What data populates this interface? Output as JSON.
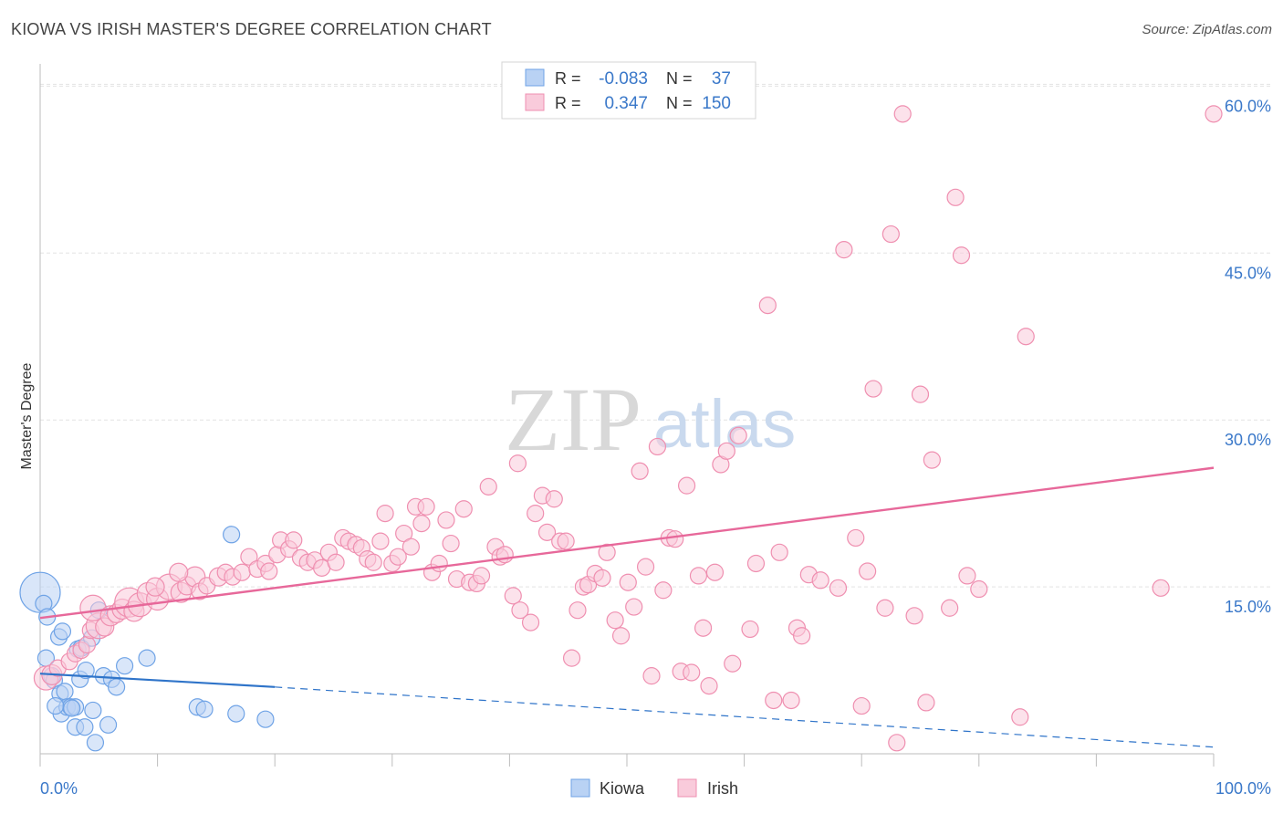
{
  "title": "KIOWA VS IRISH MASTER'S DEGREE CORRELATION CHART",
  "source": "Source: ZipAtlas.com",
  "watermark": {
    "zip": "ZIP",
    "atlas": "atlas"
  },
  "colors": {
    "kiowa": "#6fa3e6",
    "kiowa_fill": "#b9d2f4",
    "kiowa_line": "#2f74c9",
    "irish": "#ef8fb0",
    "irish_fill": "#f9cbdb",
    "irish_line": "#e7689a",
    "tick_label": "#3a78c9",
    "grid": "#e3e3e3"
  },
  "legend": {
    "rows": [
      {
        "r_label": "R =",
        "r_value": "-0.083",
        "n_label": "N =",
        "n_value": "37"
      },
      {
        "r_label": "R =",
        "r_value": "0.347",
        "n_label": "N =",
        "n_value": "150"
      }
    ]
  },
  "chart_data": {
    "type": "scatter",
    "title": "KIOWA VS IRISH MASTER'S DEGREE CORRELATION CHART",
    "xlabel": "",
    "ylabel": "Master's Degree",
    "xlim": [
      0,
      100
    ],
    "ylim": [
      0,
      62
    ],
    "x_tick_labels": [
      "0.0%",
      "100.0%"
    ],
    "y_ticks": [
      15,
      30,
      45,
      60
    ],
    "y_tick_labels": [
      "15.0%",
      "30.0%",
      "45.0%",
      "60.0%"
    ],
    "grid": true,
    "legend_position": "bottom-center",
    "series": [
      {
        "name": "Kiowa",
        "R": -0.083,
        "N": 37,
        "trend": {
          "x0": 0,
          "y0": 7.2,
          "x1": 20,
          "y1": 6.0,
          "dashed_to_x": 100,
          "dashed_to_y": 0.6
        },
        "points": [
          [
            0,
            14.5,
            22
          ],
          [
            0.3,
            13.5,
            9
          ],
          [
            0.6,
            12.3,
            9
          ],
          [
            0.5,
            8.6,
            9
          ],
          [
            1.0,
            7.0,
            9
          ],
          [
            1.2,
            6.6,
            9
          ],
          [
            1.6,
            10.5,
            9
          ],
          [
            1.7,
            5.4,
            9
          ],
          [
            1.9,
            11.0,
            9
          ],
          [
            1.8,
            3.6,
            9
          ],
          [
            2.1,
            5.6,
            9
          ],
          [
            2.3,
            4.2,
            9
          ],
          [
            2.6,
            4.2,
            9
          ],
          [
            3.0,
            4.2,
            9
          ],
          [
            3.2,
            9.4,
            9
          ],
          [
            3.0,
            2.4,
            9
          ],
          [
            3.5,
            9.5,
            9
          ],
          [
            3.4,
            6.7,
            9
          ],
          [
            3.8,
            2.4,
            9
          ],
          [
            3.9,
            7.5,
            9
          ],
          [
            4.4,
            10.4,
            9
          ],
          [
            4.5,
            3.9,
            9
          ],
          [
            4.7,
            1.0,
            9
          ],
          [
            5.0,
            12.9,
            9
          ],
          [
            5.4,
            7.0,
            9
          ],
          [
            5.8,
            2.6,
            9
          ],
          [
            6.1,
            6.7,
            9
          ],
          [
            6.5,
            6.0,
            9
          ],
          [
            7.2,
            7.9,
            9
          ],
          [
            9.1,
            8.6,
            9
          ],
          [
            13.4,
            4.2,
            9
          ],
          [
            14.0,
            4.0,
            9
          ],
          [
            16.3,
            19.7,
            9
          ],
          [
            16.7,
            3.6,
            9
          ],
          [
            19.2,
            3.1,
            9
          ],
          [
            1.3,
            4.3,
            9
          ],
          [
            2.7,
            4.1,
            9
          ]
        ]
      },
      {
        "name": "Irish",
        "R": 0.347,
        "N": 150,
        "trend": {
          "x0": 0,
          "y0": 12.2,
          "x1": 100,
          "y1": 25.7
        },
        "points": [
          [
            0.5,
            6.8,
            13
          ],
          [
            1.0,
            7.1,
            11
          ],
          [
            1.5,
            7.7,
            9
          ],
          [
            2.5,
            8.3,
            9
          ],
          [
            3.0,
            9.0,
            9
          ],
          [
            3.5,
            9.3,
            9
          ],
          [
            4.0,
            9.8,
            9
          ],
          [
            4.3,
            11.1,
            9
          ],
          [
            5.0,
            11.5,
            14
          ],
          [
            5.5,
            11.4,
            10
          ],
          [
            4.5,
            13.1,
            14
          ],
          [
            6.0,
            12.4,
            11
          ],
          [
            6.5,
            12.6,
            10
          ],
          [
            7.0,
            13.0,
            11
          ],
          [
            7.6,
            13.6,
            16
          ],
          [
            8.0,
            12.8,
            11
          ],
          [
            8.5,
            13.4,
            13
          ],
          [
            9.2,
            14.4,
            12
          ],
          [
            10.0,
            13.9,
            12
          ],
          [
            11.0,
            15.0,
            14
          ],
          [
            12.0,
            14.5,
            11
          ],
          [
            12.5,
            15.1,
            10
          ],
          [
            13.2,
            15.9,
            11
          ],
          [
            13.6,
            14.6,
            9
          ],
          [
            14.2,
            15.1,
            9
          ],
          [
            15.2,
            15.9,
            10
          ],
          [
            15.8,
            16.3,
            9
          ],
          [
            16.4,
            15.9,
            9
          ],
          [
            17.2,
            16.3,
            9
          ],
          [
            17.8,
            17.7,
            9
          ],
          [
            18.5,
            16.6,
            9
          ],
          [
            19.2,
            17.1,
            9
          ],
          [
            19.5,
            16.4,
            9
          ],
          [
            20.2,
            17.9,
            9
          ],
          [
            20.5,
            19.2,
            9
          ],
          [
            21.2,
            18.4,
            9
          ],
          [
            21.6,
            19.2,
            9
          ],
          [
            22.2,
            17.6,
            9
          ],
          [
            22.8,
            17.2,
            9
          ],
          [
            23.4,
            17.4,
            9
          ],
          [
            24.0,
            16.7,
            9
          ],
          [
            24.6,
            18.1,
            9
          ],
          [
            25.2,
            17.2,
            9
          ],
          [
            25.8,
            19.4,
            9
          ],
          [
            26.3,
            19.1,
            9
          ],
          [
            26.9,
            18.8,
            9
          ],
          [
            27.4,
            18.5,
            9
          ],
          [
            27.9,
            17.5,
            9
          ],
          [
            28.4,
            17.2,
            9
          ],
          [
            29.0,
            19.1,
            9
          ],
          [
            29.4,
            21.6,
            9
          ],
          [
            30.0,
            17.1,
            9
          ],
          [
            30.5,
            17.7,
            9
          ],
          [
            31.0,
            19.8,
            9
          ],
          [
            31.6,
            18.6,
            9
          ],
          [
            32.0,
            22.2,
            9
          ],
          [
            32.5,
            20.7,
            9
          ],
          [
            32.9,
            22.2,
            9
          ],
          [
            33.4,
            16.3,
            9
          ],
          [
            34.0,
            17.1,
            9
          ],
          [
            34.6,
            21.0,
            9
          ],
          [
            35.0,
            18.9,
            9
          ],
          [
            35.5,
            15.7,
            9
          ],
          [
            36.1,
            22.0,
            9
          ],
          [
            36.6,
            15.4,
            9
          ],
          [
            37.2,
            15.3,
            9
          ],
          [
            37.6,
            16.0,
            9
          ],
          [
            38.2,
            24.0,
            9
          ],
          [
            38.8,
            18.6,
            9
          ],
          [
            39.2,
            17.7,
            9
          ],
          [
            39.6,
            17.9,
            9
          ],
          [
            40.3,
            14.2,
            9
          ],
          [
            40.9,
            12.9,
            9
          ],
          [
            40.7,
            26.1,
            9
          ],
          [
            41.8,
            11.8,
            9
          ],
          [
            42.2,
            21.6,
            9
          ],
          [
            42.8,
            23.2,
            9
          ],
          [
            43.2,
            19.9,
            9
          ],
          [
            43.8,
            22.9,
            9
          ],
          [
            44.3,
            19.1,
            9
          ],
          [
            44.8,
            19.1,
            9
          ],
          [
            45.3,
            8.6,
            9
          ],
          [
            45.8,
            12.9,
            9
          ],
          [
            46.3,
            15.0,
            9
          ],
          [
            46.7,
            15.2,
            9
          ],
          [
            47.3,
            16.2,
            9
          ],
          [
            47.9,
            15.8,
            9
          ],
          [
            48.3,
            18.1,
            9
          ],
          [
            49.0,
            12.0,
            9
          ],
          [
            49.5,
            10.6,
            9
          ],
          [
            50.1,
            15.4,
            9
          ],
          [
            50.6,
            13.2,
            9
          ],
          [
            51.1,
            25.4,
            9
          ],
          [
            51.6,
            16.8,
            9
          ],
          [
            52.1,
            7.0,
            9
          ],
          [
            52.6,
            27.6,
            9
          ],
          [
            53.1,
            14.7,
            9
          ],
          [
            53.6,
            19.4,
            9
          ],
          [
            54.1,
            19.3,
            9
          ],
          [
            54.6,
            7.4,
            9
          ],
          [
            55.1,
            24.1,
            9
          ],
          [
            55.5,
            7.3,
            9
          ],
          [
            56.1,
            16.0,
            9
          ],
          [
            56.5,
            11.3,
            9
          ],
          [
            57.0,
            6.1,
            9
          ],
          [
            57.5,
            16.3,
            9
          ],
          [
            58.0,
            26.0,
            9
          ],
          [
            58.5,
            27.2,
            9
          ],
          [
            59.0,
            8.1,
            9
          ],
          [
            59.5,
            28.6,
            9
          ],
          [
            60.5,
            11.2,
            9
          ],
          [
            61.0,
            17.1,
            9
          ],
          [
            62.0,
            40.3,
            9
          ],
          [
            62.5,
            4.8,
            9
          ],
          [
            63.0,
            18.1,
            9
          ],
          [
            64.0,
            4.8,
            9
          ],
          [
            64.5,
            11.3,
            9
          ],
          [
            64.9,
            10.6,
            9
          ],
          [
            65.5,
            16.1,
            9
          ],
          [
            66.5,
            15.6,
            9
          ],
          [
            68.0,
            14.9,
            9
          ],
          [
            68.5,
            45.3,
            9
          ],
          [
            69.5,
            19.4,
            9
          ],
          [
            70.0,
            4.3,
            9
          ],
          [
            70.5,
            16.4,
            9
          ],
          [
            71.0,
            32.8,
            9
          ],
          [
            72.0,
            13.1,
            9
          ],
          [
            72.5,
            46.7,
            9
          ],
          [
            73.0,
            1.0,
            9
          ],
          [
            73.5,
            57.5,
            9
          ],
          [
            74.5,
            12.4,
            9
          ],
          [
            75.0,
            32.3,
            9
          ],
          [
            75.5,
            4.6,
            9
          ],
          [
            76.0,
            26.4,
            9
          ],
          [
            77.5,
            13.1,
            9
          ],
          [
            78.0,
            50.0,
            9
          ],
          [
            78.5,
            44.8,
            9
          ],
          [
            79.0,
            16.0,
            9
          ],
          [
            80.0,
            14.8,
            9
          ],
          [
            83.5,
            3.3,
            9
          ],
          [
            84.0,
            37.5,
            9
          ],
          [
            95.5,
            14.9,
            9
          ],
          [
            100.0,
            57.5,
            9
          ],
          [
            9.8,
            15.0,
            10
          ],
          [
            11.8,
            16.3,
            10
          ]
        ]
      }
    ]
  }
}
